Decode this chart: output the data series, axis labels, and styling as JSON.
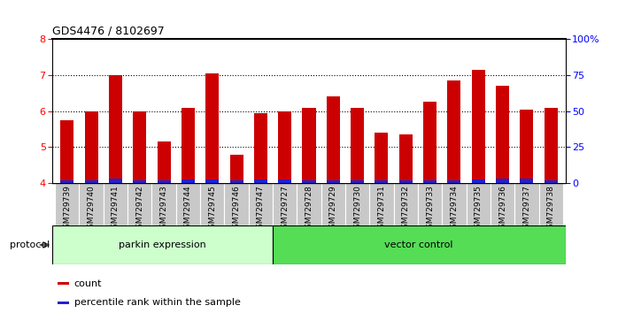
{
  "title": "GDS4476 / 8102697",
  "samples": [
    "GSM729739",
    "GSM729740",
    "GSM729741",
    "GSM729742",
    "GSM729743",
    "GSM729744",
    "GSM729745",
    "GSM729746",
    "GSM729747",
    "GSM729727",
    "GSM729728",
    "GSM729729",
    "GSM729730",
    "GSM729731",
    "GSM729732",
    "GSM729733",
    "GSM729734",
    "GSM729735",
    "GSM729736",
    "GSM729737",
    "GSM729738"
  ],
  "count_values": [
    5.75,
    6.0,
    7.0,
    6.0,
    5.15,
    6.1,
    7.05,
    4.8,
    5.95,
    6.0,
    6.1,
    6.4,
    6.1,
    5.4,
    5.35,
    6.25,
    6.85,
    7.15,
    6.7,
    6.05,
    6.1
  ],
  "percentile_values": [
    0.08,
    0.08,
    0.12,
    0.08,
    0.08,
    0.1,
    0.1,
    0.08,
    0.1,
    0.1,
    0.08,
    0.08,
    0.08,
    0.08,
    0.08,
    0.08,
    0.08,
    0.1,
    0.12,
    0.12,
    0.08
  ],
  "parkin_count": 9,
  "vector_count": 12,
  "ylim_left": [
    4,
    8
  ],
  "ylim_right": [
    0,
    100
  ],
  "right_ticks": [
    0,
    25,
    50,
    75,
    100
  ],
  "right_tick_labels": [
    "0",
    "25",
    "50",
    "75",
    "100%"
  ],
  "left_ticks": [
    4,
    5,
    6,
    7,
    8
  ],
  "bar_color_red": "#cc0000",
  "bar_color_blue": "#2222cc",
  "parkin_bg": "#ccffcc",
  "vector_bg": "#55dd55",
  "tick_label_bg": "#c8c8c8",
  "protocol_label": "protocol",
  "parkin_label": "parkin expression",
  "vector_label": "vector control",
  "legend_count": "count",
  "legend_pct": "percentile rank within the sample",
  "bar_width": 0.55,
  "dotted_lines": [
    5,
    6,
    7
  ],
  "figsize": [
    6.98,
    3.54
  ],
  "dpi": 100
}
